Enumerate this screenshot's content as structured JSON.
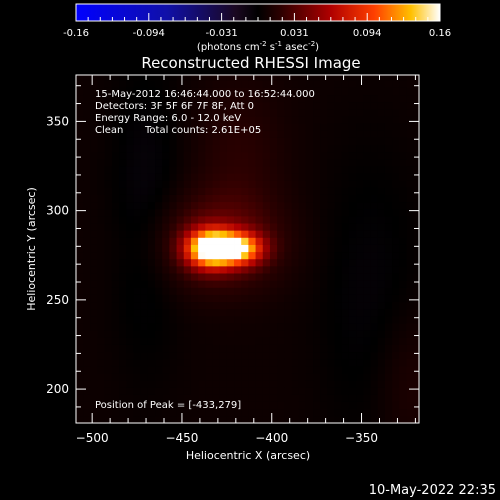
{
  "chart_data": {
    "type": "heatmap",
    "title": "Reconstructed RHESSI Image",
    "xlabel": "Heliocentric X (arcsec)",
    "ylabel": "Heliocentric Y (arcsec)",
    "xlim": [
      -509,
      -318
    ],
    "ylim": [
      181,
      376
    ],
    "xticks": [
      -500,
      -450,
      -400,
      -350
    ],
    "yticks": [
      200,
      250,
      300,
      350
    ],
    "colorbar": {
      "range": [
        -0.16,
        0.16
      ],
      "ticks": [
        "-0.16",
        "-0.094",
        "-0.031",
        "0.031",
        "0.094",
        "0.16"
      ],
      "unit_base": "(photons cm",
      "unit_exp1": "-2",
      "unit_mid": " s",
      "unit_exp2": "-1",
      "unit_mid2": " asec",
      "unit_exp3": "-2",
      "unit_end": ")"
    },
    "info_lines": [
      "15-May-2012 16:46:44.000 to 16:52:44.000",
      "Detectors: 3F 5F 6F 7F 8F, Att 0",
      "Energy Range: 6.0 - 12.0 keV"
    ],
    "info_clean": "Clean",
    "info_counts": "Total counts: 2.61E+05",
    "peak_label": "Position of Peak = [-433,279]",
    "peak": [
      -433,
      279
    ],
    "peak_value": 0.16,
    "sources": [
      {
        "x": -434,
        "y": 279,
        "sx": 9,
        "sy": 7,
        "amp": 0.16
      },
      {
        "x": -418,
        "y": 279,
        "sx": 9,
        "sy": 6,
        "amp": 0.115
      },
      {
        "x": -430,
        "y": 282,
        "sx": 24,
        "sy": 18,
        "amp": 0.035
      },
      {
        "x": -418,
        "y": 330,
        "sx": 18,
        "sy": 30,
        "amp": 0.012
      },
      {
        "x": -470,
        "y": 300,
        "sx": 14,
        "sy": 60,
        "amp": -0.012
      },
      {
        "x": -345,
        "y": 250,
        "sx": 20,
        "sy": 60,
        "amp": -0.01
      },
      {
        "x": -325,
        "y": 205,
        "sx": 14,
        "sy": 30,
        "amp": 0.01
      }
    ]
  },
  "footer": {
    "timestamp": "10-May-2022 22:35"
  }
}
